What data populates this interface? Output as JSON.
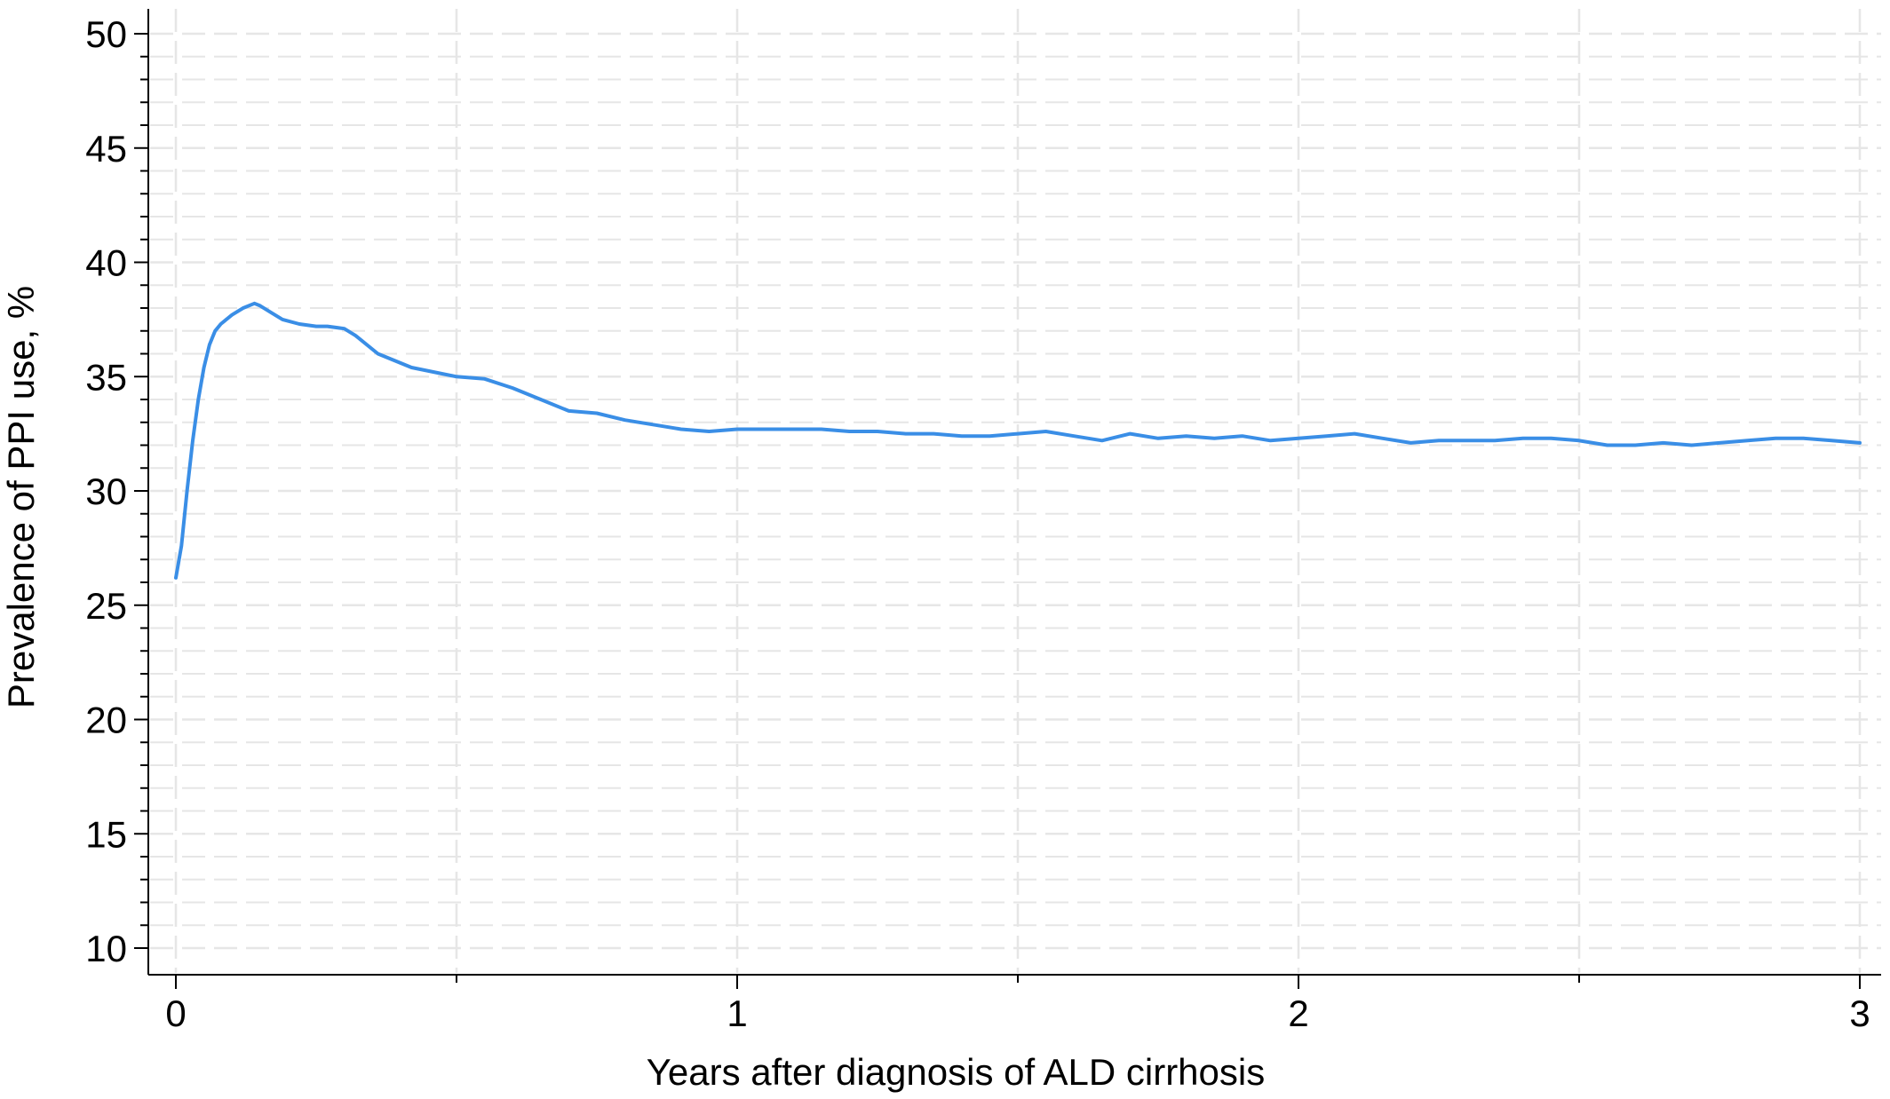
{
  "chart_data": {
    "type": "line",
    "title": "",
    "xlabel": "Years after diagnosis of ALD cirrhosis",
    "ylabel": "Prevalence of PPI use, %",
    "xlim": [
      0,
      3
    ],
    "ylim": [
      10,
      50
    ],
    "x_ticks": [
      0,
      1,
      2,
      3
    ],
    "x_tick_labels": [
      "0",
      "1",
      "2",
      "3"
    ],
    "x_minor_ticks": [
      0.5,
      1.5,
      2.5
    ],
    "y_ticks": [
      10,
      15,
      20,
      25,
      30,
      35,
      40,
      45,
      50
    ],
    "y_tick_labels": [
      "10",
      "15",
      "20",
      "25",
      "30",
      "35",
      "40",
      "45",
      "50"
    ],
    "y_minor_step": 1,
    "grid": true,
    "grid_style": "dashed",
    "colors": {
      "series": "#3a8ee6",
      "grid": "#e6e6e6",
      "axis": "#000000"
    },
    "series": [
      {
        "name": "",
        "color": "#3a8ee6",
        "x": [
          0,
          0.01,
          0.02,
          0.03,
          0.04,
          0.05,
          0.06,
          0.07,
          0.08,
          0.1,
          0.12,
          0.14,
          0.15,
          0.17,
          0.19,
          0.22,
          0.25,
          0.27,
          0.3,
          0.32,
          0.36,
          0.42,
          0.5,
          0.55,
          0.6,
          0.65,
          0.7,
          0.75,
          0.8,
          0.85,
          0.9,
          0.95,
          1.0,
          1.05,
          1.1,
          1.15,
          1.2,
          1.25,
          1.3,
          1.35,
          1.4,
          1.45,
          1.5,
          1.55,
          1.6,
          1.65,
          1.7,
          1.75,
          1.8,
          1.85,
          1.9,
          1.95,
          2.0,
          2.05,
          2.1,
          2.15,
          2.2,
          2.25,
          2.3,
          2.35,
          2.4,
          2.45,
          2.5,
          2.55,
          2.6,
          2.65,
          2.7,
          2.75,
          2.8,
          2.85,
          2.9,
          2.95,
          3.0
        ],
        "values": [
          26.2,
          27.6,
          30.0,
          32.2,
          34.0,
          35.4,
          36.4,
          37.0,
          37.3,
          37.7,
          38.0,
          38.2,
          38.1,
          37.8,
          37.5,
          37.3,
          37.2,
          37.2,
          37.1,
          36.8,
          36.0,
          35.4,
          35.0,
          34.9,
          34.5,
          34.0,
          33.5,
          33.4,
          33.1,
          32.9,
          32.7,
          32.6,
          32.7,
          32.7,
          32.7,
          32.7,
          32.6,
          32.6,
          32.5,
          32.5,
          32.4,
          32.4,
          32.5,
          32.6,
          32.4,
          32.2,
          32.5,
          32.3,
          32.4,
          32.3,
          32.4,
          32.2,
          32.3,
          32.4,
          32.5,
          32.3,
          32.1,
          32.2,
          32.2,
          32.2,
          32.3,
          32.3,
          32.2,
          32.0,
          32.0,
          32.1,
          32.0,
          32.1,
          32.2,
          32.3,
          32.3,
          32.2,
          32.1
        ]
      }
    ]
  }
}
